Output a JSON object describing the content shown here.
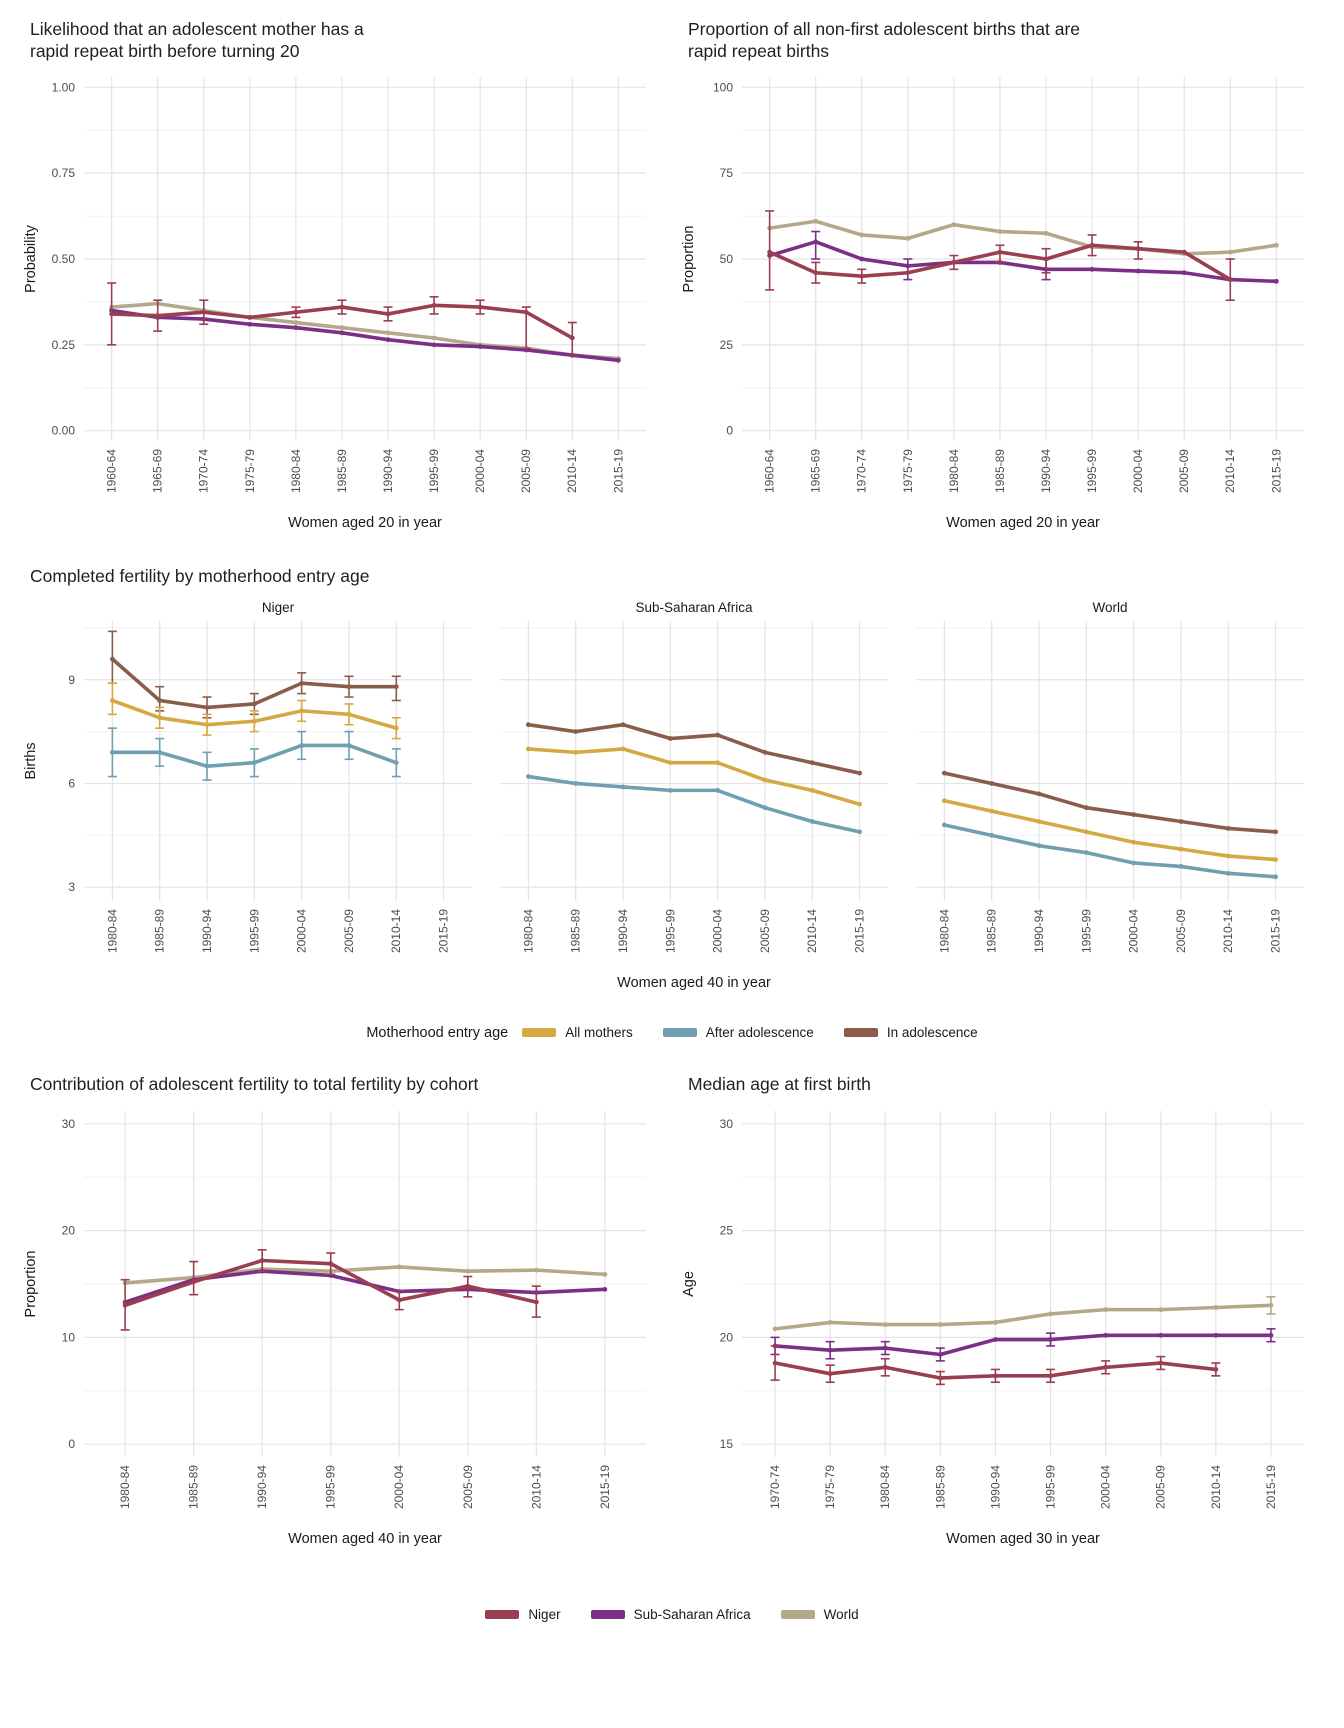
{
  "colors": {
    "niger": "#9a3e52",
    "sub_saharan_africa": "#7c2f87",
    "world": "#b3a98a",
    "all_mothers": "#d4a843",
    "after_adolescence": "#6fa0b0",
    "in_adolescence": "#8b5c4b",
    "grid_major": "#e4e4e4",
    "grid_minor": "#f2f2f2"
  },
  "entry_age_legend": {
    "title": "Motherhood entry age",
    "entries": [
      {
        "label": "All mothers",
        "color": "all_mothers"
      },
      {
        "label": "After adolescence",
        "color": "after_adolescence"
      },
      {
        "label": "In adolescence",
        "color": "in_adolescence"
      }
    ]
  },
  "region_legend": {
    "entries": [
      {
        "label": "Niger",
        "color": "niger"
      },
      {
        "label": "Sub-Saharan Africa",
        "color": "sub_saharan_africa"
      },
      {
        "label": "World",
        "color": "world"
      }
    ]
  },
  "chart_data": [
    {
      "id": "rapid-repeat-likelihood",
      "type": "line",
      "title": "Likelihood that an adolescent mother has a\nrapid repeat birth before turning 20",
      "xlabel": "Women aged 20 in year",
      "ylabel": "Probability",
      "ylim": [
        -0.03,
        1.03
      ],
      "yticks": [
        0,
        0.25,
        0.5,
        0.75,
        1
      ],
      "ytick_labels": [
        "0.00",
        "0.25",
        "0.50",
        "0.75",
        "1.00"
      ],
      "categories": [
        "1960-64",
        "1965-69",
        "1970-74",
        "1975-79",
        "1980-84",
        "1985-89",
        "1990-94",
        "1995-99",
        "2000-04",
        "2005-09",
        "2010-14",
        "2015-19"
      ],
      "series": [
        {
          "name": "World",
          "color": "world",
          "values": [
            0.36,
            0.37,
            0.35,
            0.33,
            0.315,
            0.3,
            0.285,
            0.27,
            0.25,
            0.24,
            0.22,
            0.21
          ]
        },
        {
          "name": "Sub-Saharan Africa",
          "color": "sub_saharan_africa",
          "values": [
            0.35,
            0.33,
            0.325,
            0.31,
            0.3,
            0.285,
            0.265,
            0.25,
            0.245,
            0.235,
            0.22,
            0.205
          ]
        },
        {
          "name": "Niger",
          "color": "niger",
          "values": [
            0.34,
            0.335,
            0.345,
            0.33,
            0.345,
            0.36,
            0.34,
            0.365,
            0.36,
            0.345,
            0.27,
            null
          ],
          "err": [
            [
              0.25,
              0.43
            ],
            [
              0.29,
              0.38
            ],
            [
              0.31,
              0.38
            ],
            null,
            [
              0.33,
              0.36
            ],
            [
              0.34,
              0.38
            ],
            [
              0.32,
              0.36
            ],
            [
              0.34,
              0.39
            ],
            [
              0.34,
              0.38
            ],
            [
              0.24,
              0.36
            ],
            [
              0.22,
              0.315
            ],
            null
          ]
        }
      ]
    },
    {
      "id": "rapid-repeat-proportion",
      "type": "line",
      "title": "Proportion of all non-first adolescent births that are\nrapid repeat births",
      "xlabel": "Women aged 20 in year",
      "ylabel": "Proportion",
      "ylim": [
        -3,
        103
      ],
      "yticks": [
        0,
        25,
        50,
        75,
        100
      ],
      "categories": [
        "1960-64",
        "1965-69",
        "1970-74",
        "1975-79",
        "1980-84",
        "1985-89",
        "1990-94",
        "1995-99",
        "2000-04",
        "2005-09",
        "2010-14",
        "2015-19"
      ],
      "series": [
        {
          "name": "World",
          "color": "world",
          "values": [
            59,
            61,
            57,
            56,
            60,
            58,
            57.5,
            53.5,
            53,
            51.5,
            52,
            54
          ]
        },
        {
          "name": "Sub-Saharan Africa",
          "color": "sub_saharan_africa",
          "values": [
            51,
            55,
            50,
            48,
            49,
            49,
            47,
            47,
            46.5,
            46,
            44,
            43.5
          ],
          "err": [
            null,
            [
              50,
              58
            ],
            null,
            [
              44,
              50
            ],
            null,
            null,
            [
              44,
              50
            ],
            null,
            null,
            null,
            null,
            null
          ]
        },
        {
          "name": "Niger",
          "color": "niger",
          "values": [
            52,
            46,
            45,
            46,
            49,
            52,
            50,
            54,
            53,
            52,
            44,
            null
          ],
          "err": [
            [
              41,
              64
            ],
            [
              43,
              49
            ],
            [
              43,
              47
            ],
            null,
            [
              47,
              51
            ],
            [
              49,
              54
            ],
            [
              46,
              53
            ],
            [
              51,
              57
            ],
            [
              50,
              55
            ],
            null,
            [
              38,
              50
            ],
            null
          ]
        }
      ]
    },
    {
      "id": "completed-fertility",
      "type": "line",
      "title": "Completed fertility by motherhood entry age",
      "xlabel": "Women aged 40 in year",
      "ylabel": "Births",
      "ylim": [
        2.6,
        10.7
      ],
      "yticks": [
        3,
        6,
        9
      ],
      "categories": [
        "1980-84",
        "1985-89",
        "1990-94",
        "1995-99",
        "2000-04",
        "2005-09",
        "2010-14",
        "2015-19"
      ],
      "facets": [
        {
          "label": "Niger",
          "series": [
            {
              "name": "In adolescence",
              "color": "in_adolescence",
              "values": [
                9.6,
                8.4,
                8.2,
                8.3,
                8.9,
                8.8,
                8.8,
                null
              ],
              "err": [
                [
                  8.9,
                  10.4
                ],
                [
                  8.1,
                  8.8
                ],
                [
                  7.9,
                  8.5
                ],
                [
                  8.0,
                  8.6
                ],
                [
                  8.6,
                  9.2
                ],
                [
                  8.5,
                  9.1
                ],
                [
                  8.4,
                  9.1
                ],
                null
              ]
            },
            {
              "name": "All mothers",
              "color": "all_mothers",
              "values": [
                8.4,
                7.9,
                7.7,
                7.8,
                8.1,
                8.0,
                7.6,
                null
              ],
              "err": [
                [
                  8.0,
                  8.9
                ],
                [
                  7.6,
                  8.2
                ],
                [
                  7.4,
                  8.0
                ],
                [
                  7.5,
                  8.1
                ],
                [
                  7.8,
                  8.4
                ],
                [
                  7.7,
                  8.3
                ],
                [
                  7.3,
                  7.9
                ],
                null
              ]
            },
            {
              "name": "After adolescence",
              "color": "after_adolescence",
              "values": [
                6.9,
                6.9,
                6.5,
                6.6,
                7.1,
                7.1,
                6.6,
                null
              ],
              "err": [
                [
                  6.2,
                  7.6
                ],
                [
                  6.5,
                  7.3
                ],
                [
                  6.1,
                  6.9
                ],
                [
                  6.2,
                  7.0
                ],
                [
                  6.7,
                  7.5
                ],
                [
                  6.7,
                  7.5
                ],
                [
                  6.2,
                  7.0
                ],
                null
              ]
            }
          ]
        },
        {
          "label": "Sub-Saharan Africa",
          "series": [
            {
              "name": "In adolescence",
              "color": "in_adolescence",
              "values": [
                7.7,
                7.5,
                7.7,
                7.3,
                7.4,
                6.9,
                6.6,
                6.3
              ]
            },
            {
              "name": "All mothers",
              "color": "all_mothers",
              "values": [
                7.0,
                6.9,
                7.0,
                6.6,
                6.6,
                6.1,
                5.8,
                5.4
              ]
            },
            {
              "name": "After adolescence",
              "color": "after_adolescence",
              "values": [
                6.2,
                6.0,
                5.9,
                5.8,
                5.8,
                5.3,
                4.9,
                4.6
              ]
            }
          ]
        },
        {
          "label": "World",
          "series": [
            {
              "name": "In adolescence",
              "color": "in_adolescence",
              "values": [
                6.3,
                6.0,
                5.7,
                5.3,
                5.1,
                4.9,
                4.7,
                4.6
              ]
            },
            {
              "name": "All mothers",
              "color": "all_mothers",
              "values": [
                5.5,
                5.2,
                4.9,
                4.6,
                4.3,
                4.1,
                3.9,
                3.8
              ]
            },
            {
              "name": "After adolescence",
              "color": "after_adolescence",
              "values": [
                4.8,
                4.5,
                4.2,
                4.0,
                3.7,
                3.6,
                3.4,
                3.3
              ]
            }
          ]
        }
      ]
    },
    {
      "id": "adolescent-contribution",
      "type": "line",
      "title": "Contribution of adolescent fertility to total fertility by cohort",
      "xlabel": "Women aged 40 in year",
      "ylabel": "Proportion",
      "ylim": [
        -1.2,
        31.2
      ],
      "yticks": [
        0,
        10,
        20,
        30
      ],
      "categories": [
        "1980-84",
        "1985-89",
        "1990-94",
        "1995-99",
        "2000-04",
        "2005-09",
        "2010-14",
        "2015-19"
      ],
      "series": [
        {
          "name": "World",
          "color": "world",
          "values": [
            15.1,
            15.6,
            16.4,
            16.2,
            16.6,
            16.2,
            16.3,
            15.9
          ]
        },
        {
          "name": "Sub-Saharan Africa",
          "color": "sub_saharan_africa",
          "values": [
            13.3,
            15.4,
            16.2,
            15.8,
            14.3,
            14.5,
            14.2,
            14.5
          ]
        },
        {
          "name": "Niger",
          "color": "niger",
          "values": [
            13.0,
            15.2,
            17.2,
            16.9,
            13.5,
            14.8,
            13.3,
            null
          ],
          "err": [
            [
              10.7,
              15.4
            ],
            [
              14.0,
              17.1
            ],
            [
              16.2,
              18.2
            ],
            [
              15.9,
              17.9
            ],
            [
              12.6,
              14.4
            ],
            [
              13.8,
              15.7
            ],
            [
              11.9,
              14.8
            ],
            null
          ]
        }
      ]
    },
    {
      "id": "median-age-first-birth",
      "type": "line",
      "title": "Median age at first birth",
      "xlabel": "Women aged 30 in year",
      "ylabel": "Age",
      "ylim": [
        14.4,
        30.6
      ],
      "yticks": [
        15,
        20,
        25,
        30
      ],
      "categories": [
        "1970-74",
        "1975-79",
        "1980-84",
        "1985-89",
        "1990-94",
        "1995-99",
        "2000-04",
        "2005-09",
        "2010-14",
        "2015-19"
      ],
      "series": [
        {
          "name": "World",
          "color": "world",
          "values": [
            20.4,
            20.7,
            20.6,
            20.6,
            20.7,
            21.1,
            21.3,
            21.3,
            21.4,
            21.5
          ],
          "err": [
            null,
            null,
            null,
            null,
            null,
            null,
            null,
            null,
            null,
            [
              21.1,
              21.9
            ]
          ]
        },
        {
          "name": "Sub-Saharan Africa",
          "color": "sub_saharan_africa",
          "values": [
            19.6,
            19.4,
            19.5,
            19.2,
            19.9,
            19.9,
            20.1,
            20.1,
            20.1,
            20.1
          ],
          "err": [
            [
              19.2,
              20.0
            ],
            [
              19.0,
              19.8
            ],
            [
              19.2,
              19.8
            ],
            [
              18.9,
              19.5
            ],
            null,
            [
              19.6,
              20.2
            ],
            null,
            null,
            null,
            [
              19.8,
              20.4
            ]
          ]
        },
        {
          "name": "Niger",
          "color": "niger",
          "values": [
            18.8,
            18.3,
            18.6,
            18.1,
            18.2,
            18.2,
            18.6,
            18.8,
            18.5,
            null
          ],
          "err": [
            [
              18.0,
              19.6
            ],
            [
              17.9,
              18.7
            ],
            [
              18.2,
              19.0
            ],
            [
              17.8,
              18.4
            ],
            [
              17.9,
              18.5
            ],
            [
              17.9,
              18.5
            ],
            [
              18.3,
              18.9
            ],
            [
              18.5,
              19.1
            ],
            [
              18.2,
              18.8
            ],
            null
          ]
        }
      ]
    }
  ]
}
